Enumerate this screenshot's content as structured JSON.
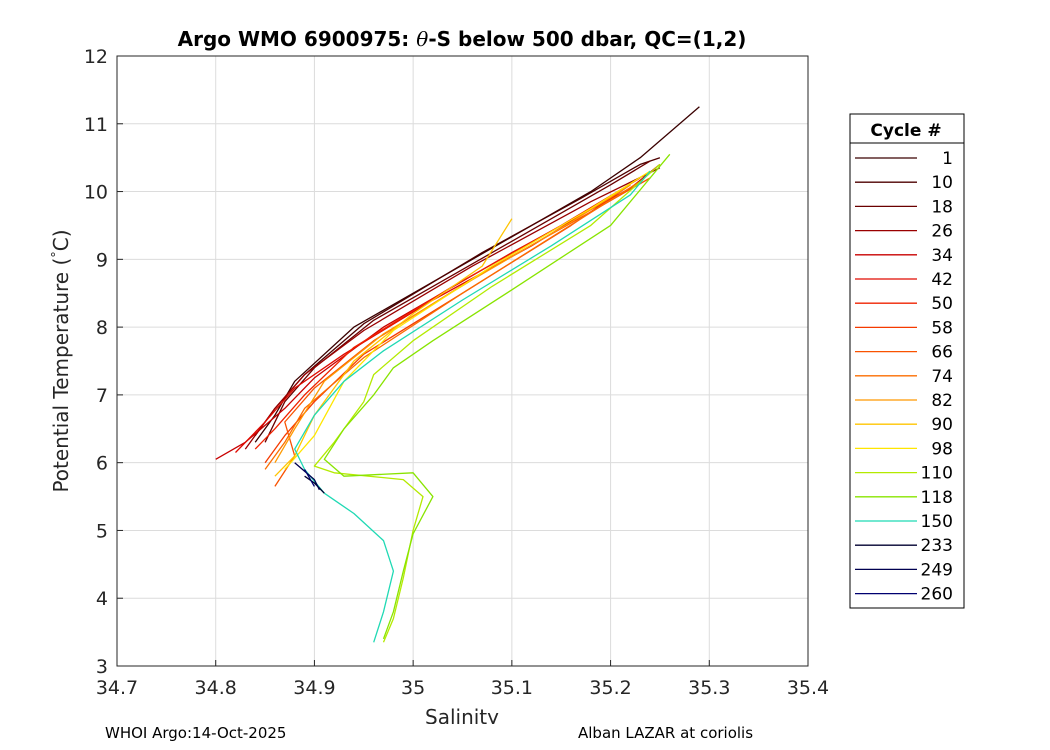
{
  "chart_data": {
    "type": "line",
    "title": "Argo WMO 6900975: θ-S below 500 dbar,  QC=(1,2)",
    "title_prefix": "Argo WMO 6900975: ",
    "title_symbol": "θ",
    "title_suffix": "-S below 500 dbar,  QC=(1,2)",
    "xlabel": "Salinity",
    "ylabel": "Potential Temperature (°C)",
    "ylabel_main": "Potential Temperature (",
    "ylabel_degree": "°",
    "ylabel_unit": "C)",
    "xlim": [
      34.7,
      35.4
    ],
    "ylim": [
      3,
      12
    ],
    "x_ticks": [
      34.7,
      34.8,
      34.9,
      35,
      35.1,
      35.2,
      35.3,
      35.4
    ],
    "x_tick_labels": [
      "34.7",
      "34.8",
      "34.9",
      "35",
      "35.1",
      "35.2",
      "35.3",
      "35.4"
    ],
    "y_ticks": [
      3,
      4,
      5,
      6,
      7,
      8,
      9,
      10,
      11,
      12
    ],
    "y_tick_labels": [
      "3",
      "4",
      "5",
      "6",
      "7",
      "8",
      "9",
      "10",
      "11",
      "12"
    ],
    "grid": true,
    "legend_title": "Cycle #",
    "legend_position": "right",
    "series": [
      {
        "name": "1",
        "color": "#3a0000",
        "points": [
          [
            34.84,
            6.3
          ],
          [
            34.86,
            6.7
          ],
          [
            34.88,
            7.2
          ],
          [
            34.94,
            8.0
          ],
          [
            35.06,
            9.0
          ],
          [
            35.18,
            10.0
          ],
          [
            35.23,
            10.5
          ],
          [
            35.29,
            11.25
          ]
        ]
      },
      {
        "name": "10",
        "color": "#4e0000",
        "points": [
          [
            34.84,
            6.4
          ],
          [
            34.86,
            6.8
          ],
          [
            34.89,
            7.3
          ],
          [
            34.95,
            8.05
          ],
          [
            35.07,
            9.1
          ],
          [
            35.17,
            9.9
          ],
          [
            35.23,
            10.4
          ],
          [
            35.25,
            10.5
          ]
        ]
      },
      {
        "name": "18",
        "color": "#6a0000",
        "points": [
          [
            34.85,
            6.3
          ],
          [
            34.87,
            6.9
          ],
          [
            34.9,
            7.4
          ],
          [
            34.96,
            8.1
          ],
          [
            35.08,
            9.1
          ],
          [
            35.2,
            10.1
          ],
          [
            35.24,
            10.45
          ]
        ]
      },
      {
        "name": "26",
        "color": "#9a0000",
        "points": [
          [
            34.83,
            6.2
          ],
          [
            34.86,
            6.8
          ],
          [
            34.89,
            7.3
          ],
          [
            34.95,
            7.95
          ],
          [
            35.06,
            8.9
          ],
          [
            35.18,
            9.85
          ],
          [
            35.25,
            10.35
          ]
        ]
      },
      {
        "name": "34",
        "color": "#c80000",
        "points": [
          [
            34.8,
            6.05
          ],
          [
            34.83,
            6.3
          ],
          [
            34.87,
            6.8
          ],
          [
            34.9,
            7.25
          ],
          [
            34.97,
            8.0
          ],
          [
            35.1,
            9.1
          ],
          [
            35.22,
            10.05
          ],
          [
            35.25,
            10.4
          ]
        ]
      },
      {
        "name": "42",
        "color": "#e00a00",
        "points": [
          [
            34.82,
            6.15
          ],
          [
            34.85,
            6.6
          ],
          [
            34.88,
            7.1
          ],
          [
            34.93,
            7.6
          ],
          [
            35.02,
            8.4
          ],
          [
            35.12,
            9.2
          ],
          [
            35.22,
            10.1
          ]
        ]
      },
      {
        "name": "50",
        "color": "#ef2200",
        "points": [
          [
            34.84,
            6.2
          ],
          [
            34.86,
            6.5
          ],
          [
            34.89,
            7.0
          ],
          [
            34.94,
            7.7
          ],
          [
            35.04,
            8.6
          ],
          [
            35.15,
            9.5
          ],
          [
            35.23,
            10.2
          ]
        ]
      },
      {
        "name": "58",
        "color": "#f53a00",
        "points": [
          [
            34.85,
            6.0
          ],
          [
            34.87,
            6.4
          ],
          [
            34.9,
            6.9
          ],
          [
            34.95,
            7.6
          ],
          [
            35.05,
            8.5
          ],
          [
            35.16,
            9.5
          ],
          [
            35.22,
            10.1
          ]
        ]
      },
      {
        "name": "66",
        "color": "#f95200",
        "points": [
          [
            34.86,
            5.65
          ],
          [
            34.88,
            6.1
          ],
          [
            34.87,
            6.6
          ],
          [
            34.9,
            7.1
          ],
          [
            34.96,
            7.8
          ],
          [
            35.07,
            8.8
          ],
          [
            35.18,
            9.7
          ],
          [
            35.24,
            10.2
          ]
        ]
      },
      {
        "name": "74",
        "color": "#fb6d00",
        "points": [
          [
            34.85,
            5.9
          ],
          [
            34.87,
            6.3
          ],
          [
            34.89,
            6.8
          ],
          [
            34.95,
            7.55
          ],
          [
            35.05,
            8.5
          ],
          [
            35.17,
            9.6
          ],
          [
            35.23,
            10.15
          ]
        ]
      },
      {
        "name": "82",
        "color": "#ff9900",
        "points": [
          [
            34.86,
            6.0
          ],
          [
            34.88,
            6.5
          ],
          [
            34.91,
            7.2
          ],
          [
            34.97,
            7.9
          ],
          [
            35.06,
            8.7
          ],
          [
            35.16,
            9.55
          ],
          [
            35.22,
            10.1
          ]
        ]
      },
      {
        "name": "90",
        "color": "#ffc400",
        "points": [
          [
            34.86,
            5.8
          ],
          [
            34.88,
            6.1
          ],
          [
            34.9,
            6.7
          ],
          [
            34.94,
            7.5
          ],
          [
            35.0,
            8.2
          ],
          [
            35.07,
            8.9
          ],
          [
            35.1,
            9.6
          ]
        ]
      },
      {
        "name": "98",
        "color": "#ffe600",
        "points": [
          [
            34.87,
            5.9
          ],
          [
            34.9,
            6.4
          ],
          [
            34.93,
            7.2
          ],
          [
            34.98,
            7.95
          ],
          [
            35.08,
            8.9
          ],
          [
            35.18,
            9.75
          ],
          [
            35.24,
            10.3
          ]
        ]
      },
      {
        "name": "110",
        "color": "#b4ea00",
        "points": [
          [
            34.97,
            3.35
          ],
          [
            34.98,
            3.7
          ],
          [
            34.99,
            4.3
          ],
          [
            35.0,
            5.0
          ],
          [
            35.01,
            5.5
          ],
          [
            34.99,
            5.75
          ],
          [
            34.92,
            5.85
          ],
          [
            34.9,
            5.95
          ],
          [
            34.92,
            6.3
          ],
          [
            34.95,
            6.9
          ],
          [
            34.96,
            7.3
          ],
          [
            35.0,
            7.8
          ],
          [
            35.08,
            8.6
          ],
          [
            35.18,
            9.5
          ],
          [
            35.25,
            10.4
          ]
        ]
      },
      {
        "name": "118",
        "color": "#88e400",
        "points": [
          [
            34.97,
            3.4
          ],
          [
            34.98,
            3.8
          ],
          [
            34.99,
            4.4
          ],
          [
            35.0,
            4.95
          ],
          [
            35.02,
            5.5
          ],
          [
            35.0,
            5.85
          ],
          [
            34.93,
            5.8
          ],
          [
            34.91,
            6.05
          ],
          [
            34.93,
            6.5
          ],
          [
            34.96,
            7.0
          ],
          [
            34.98,
            7.4
          ],
          [
            35.02,
            7.8
          ],
          [
            35.1,
            8.55
          ],
          [
            35.2,
            9.5
          ],
          [
            35.26,
            10.55
          ]
        ]
      },
      {
        "name": "150",
        "color": "#1fd9b4",
        "points": [
          [
            34.96,
            3.35
          ],
          [
            34.97,
            3.8
          ],
          [
            34.98,
            4.4
          ],
          [
            34.97,
            4.85
          ],
          [
            34.94,
            5.25
          ],
          [
            34.91,
            5.55
          ],
          [
            34.89,
            5.9
          ],
          [
            34.88,
            6.2
          ],
          [
            34.9,
            6.7
          ],
          [
            34.93,
            7.2
          ],
          [
            34.97,
            7.65
          ],
          [
            35.05,
            8.4
          ],
          [
            35.14,
            9.2
          ],
          [
            35.22,
            9.95
          ],
          [
            35.24,
            10.3
          ]
        ]
      },
      {
        "name": "233",
        "color": "#000030",
        "points": [
          [
            34.89,
            5.8
          ],
          [
            34.9,
            5.7
          ],
          [
            34.91,
            5.55
          ]
        ]
      },
      {
        "name": "249",
        "color": "#000050",
        "points": [
          [
            34.88,
            6.0
          ],
          [
            34.9,
            5.75
          ],
          [
            34.905,
            5.6
          ]
        ]
      },
      {
        "name": "260",
        "color": "#000070",
        "points": [
          [
            34.89,
            5.9
          ],
          [
            34.9,
            5.65
          ]
        ]
      }
    ]
  },
  "footer": {
    "left": "WHOI Argo:14-Oct-2025",
    "right": "Alban LAZAR at coriolis"
  }
}
